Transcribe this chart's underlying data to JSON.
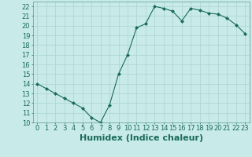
{
  "x": [
    0,
    1,
    2,
    3,
    4,
    5,
    6,
    7,
    8,
    9,
    10,
    11,
    12,
    13,
    14,
    15,
    16,
    17,
    18,
    19,
    20,
    21,
    22,
    23
  ],
  "y": [
    14,
    13.5,
    13,
    12.5,
    12,
    11.5,
    10.5,
    10,
    11.8,
    15,
    17,
    19.8,
    20.2,
    22,
    21.8,
    21.5,
    20.5,
    21.8,
    21.6,
    21.3,
    21.2,
    20.8,
    20.1,
    19.2
  ],
  "line_color": "#1a6b5a",
  "marker": "D",
  "marker_size": 2,
  "bg_color": "#c8eae8",
  "grid_color": "#b0d8d4",
  "xlabel": "Humidex (Indice chaleur)",
  "xlim": [
    -0.5,
    23.5
  ],
  "ylim": [
    10,
    22.5
  ],
  "yticks": [
    10,
    11,
    12,
    13,
    14,
    15,
    16,
    17,
    18,
    19,
    20,
    21,
    22
  ],
  "xticks": [
    0,
    1,
    2,
    3,
    4,
    5,
    6,
    7,
    8,
    9,
    10,
    11,
    12,
    13,
    14,
    15,
    16,
    17,
    18,
    19,
    20,
    21,
    22,
    23
  ],
  "tick_fontsize": 6,
  "xlabel_fontsize": 8,
  "label_color": "#1a6b5a"
}
